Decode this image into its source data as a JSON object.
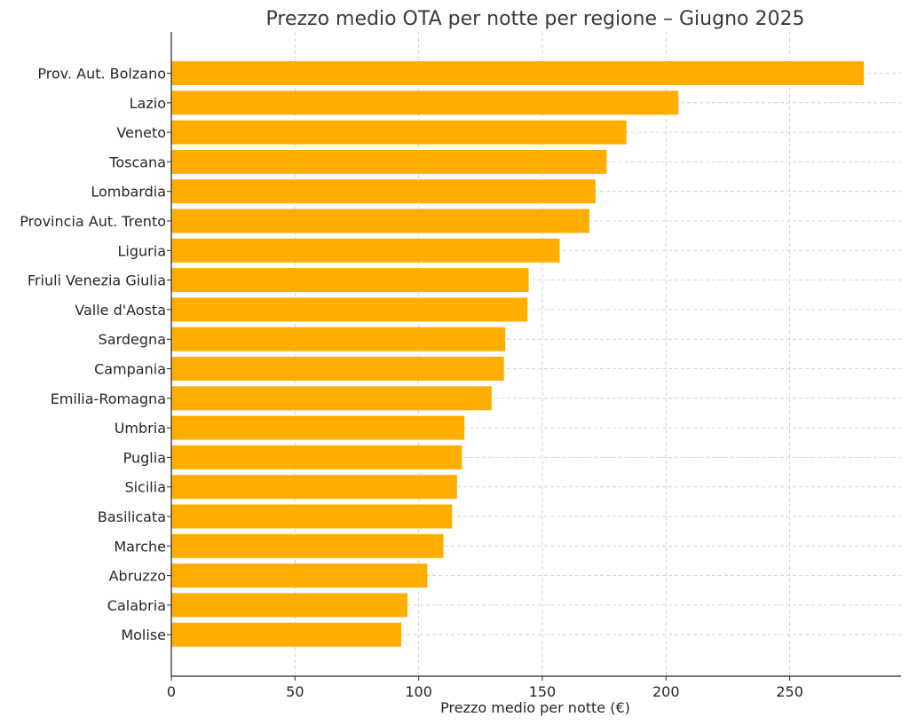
{
  "chart_data": {
    "type": "bar",
    "orientation": "horizontal",
    "title": "Prezzo medio OTA per notte per regione – Giugno 2025",
    "xlabel": "Prezzo medio per notte (€)",
    "ylabel": "",
    "xlim": [
      0,
      295
    ],
    "xticks": [
      0,
      50,
      100,
      150,
      200,
      250
    ],
    "grid": true,
    "bar_color": "#FFAE00",
    "categories": [
      "Prov. Aut. Bolzano",
      "Lazio",
      "Veneto",
      "Toscana",
      "Lombardia",
      "Provincia Aut. Trento",
      "Liguria",
      "Friuli Venezia Giulia",
      "Valle d'Aosta",
      "Sardegna",
      "Campania",
      "Emilia-Romagna",
      "Umbria",
      "Puglia",
      "Sicilia",
      "Basilicata",
      "Marche",
      "Abruzzo",
      "Calabria",
      "Molise"
    ],
    "values": [
      280,
      205,
      184,
      176,
      171.5,
      169,
      157,
      144.5,
      144,
      135,
      134.5,
      129.5,
      118.5,
      117.5,
      115.5,
      113.5,
      110,
      103.5,
      95.5,
      93
    ]
  }
}
